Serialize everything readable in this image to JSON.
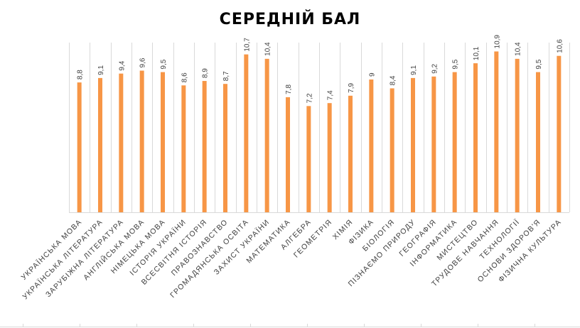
{
  "chart_data": {
    "type": "bar",
    "title": "СЕРЕДНІЙ БАЛ",
    "xlabel": "",
    "ylabel": "",
    "ylim": [
      0,
      11.5
    ],
    "grid": false,
    "legend": "none",
    "bar_color": "#F79646",
    "gridline_color": "#D9D9D9",
    "categories": [
      "УКРАЇНСЬКА МОВА",
      "УКРАЇНСЬКА ЛІТЕРАТУРА",
      "ЗАРУБІЖНА ЛІТЕРАТУРА",
      "АНГЛІЙСЬКА МОВА",
      "НІМЕЦЬКА МОВА",
      "ІСТОРІЯ УКРАЇНИ",
      "ВСЕСВІТНЯ ІСТОРІЯ",
      "ПРАВОЗНАВСТВО",
      "ГРОМАДЯНСЬКА ОСВІТА",
      "ЗАХИСТ УКРАЇНИ",
      "МАТЕМАТИКА",
      "АЛГЕБРА",
      "ГЕОМЕТРІЯ",
      "ХІМІЯ",
      "ФІЗИКА",
      "БІОЛОГІЯ",
      "ПІЗНАЄМО ПРИРОДУ",
      "ГЕОГРАФІЯ",
      "ІНФОРМАТИКА",
      "МИСТЕЦТВО",
      "ТРУДОВЕ НАВЧАННЯ",
      "ТЕХНОЛОГІЇ",
      "ОСНОВИ ЗДОРОВ'Я",
      "ФІЗИЧНА КУЛЬТУРА"
    ],
    "values": [
      8.8,
      9.1,
      9.4,
      9.6,
      9.5,
      8.6,
      8.9,
      8.7,
      10.7,
      10.4,
      7.8,
      7.2,
      7.4,
      7.9,
      9,
      8.4,
      9.1,
      9.2,
      9.5,
      10.1,
      10.9,
      10.4,
      9.5,
      10.6
    ],
    "data_labels": [
      "8,8",
      "9,1",
      "9,4",
      "9,6",
      "9,5",
      "8,6",
      "8,9",
      "8,7",
      "10,7",
      "10,4",
      "7,8",
      "7,2",
      "7,4",
      "7,9",
      "9",
      "8,4",
      "9,1",
      "9,2",
      "9,5",
      "10,1",
      "10,9",
      "10,4",
      "9,5",
      "10,6"
    ]
  }
}
